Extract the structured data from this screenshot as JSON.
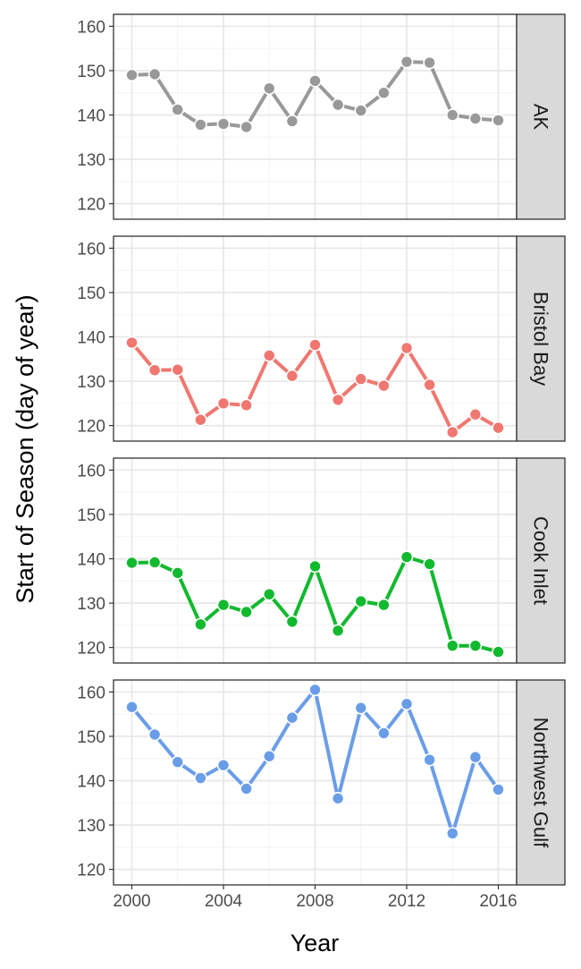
{
  "chart_data": {
    "type": "line",
    "xlabel": "Year",
    "ylabel": "Start of Season (day of year)",
    "x": [
      2000,
      2001,
      2002,
      2003,
      2004,
      2005,
      2006,
      2007,
      2008,
      2009,
      2010,
      2011,
      2012,
      2013,
      2014,
      2015,
      2016
    ],
    "xlim": [
      1999.2,
      2016.8
    ],
    "xticks": [
      2000,
      2004,
      2008,
      2012,
      2016
    ],
    "xtick_labels": [
      "2000",
      "2004",
      "2008",
      "2012",
      "2016"
    ],
    "ylim": [
      116.5,
      162.7
    ],
    "yticks": [
      120,
      130,
      140,
      150,
      160
    ],
    "ytick_labels": [
      "120",
      "130",
      "140",
      "150",
      "160"
    ],
    "grid": true,
    "facets": [
      {
        "name": "AK",
        "color": "#999999",
        "values": [
          149,
          149.2,
          141.2,
          137.8,
          138,
          137.3,
          146,
          138.6,
          147.7,
          142.3,
          141,
          145,
          152,
          151.8,
          140,
          139.2,
          138.8
        ]
      },
      {
        "name": "Bristol Bay",
        "color": "#F07770",
        "values": [
          138.7,
          132.5,
          132.6,
          121.3,
          125,
          124.6,
          135.8,
          131.2,
          138.2,
          125.8,
          130.5,
          129,
          137.5,
          129.2,
          118.5,
          122.5,
          119.5
        ]
      },
      {
        "name": "Cook Inlet",
        "color": "#11B92E",
        "values": [
          139.1,
          139.2,
          136.8,
          125.2,
          129.6,
          128,
          132,
          125.8,
          138.3,
          123.8,
          130.4,
          129.6,
          140.4,
          138.8,
          120.4,
          120.4,
          119
        ]
      },
      {
        "name": "Northwest Gulf",
        "color": "#6A9DE8",
        "values": [
          156.6,
          150.4,
          144.2,
          140.6,
          143.5,
          138.2,
          145.5,
          154.2,
          160.5,
          136,
          156.4,
          150.7,
          157.3,
          144.7,
          128.1,
          145.3,
          138
        ]
      }
    ]
  }
}
